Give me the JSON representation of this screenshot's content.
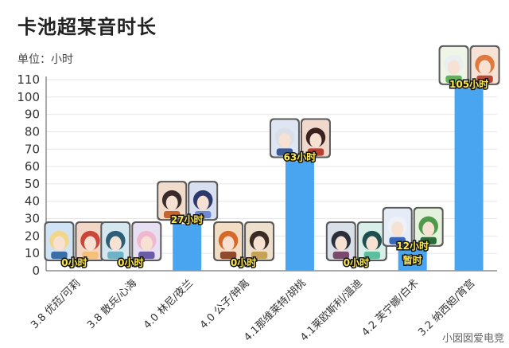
{
  "title": "卡池超某音时长",
  "unit_label": "单位：小时",
  "watermark": "小囡囡爱电竞",
  "colors": {
    "bar": "#4aa5f0",
    "grid": "#e6e6e6",
    "axis": "#555555"
  },
  "chart_data": {
    "type": "bar",
    "title": "卡池超某音时长",
    "xlabel": "",
    "ylabel": "",
    "ylim": [
      0,
      110
    ],
    "yticks": [
      0,
      10,
      20,
      30,
      40,
      50,
      60,
      70,
      80,
      90,
      100,
      110
    ],
    "grid": true,
    "categories": [
      "3.8 优菈/可莉",
      "3.8 散兵/心海",
      "4.0 林尼/夜兰",
      "4.0 公子/钟离",
      "4.1那维莱特/胡桃",
      "4.1莱欧斯利/温迪",
      "4.2 芙宁娜/白术",
      "3.2 纳西妲/宵宫"
    ],
    "values": [
      0,
      0,
      27,
      0,
      63,
      0,
      12,
      105
    ],
    "data_labels": [
      "0小时",
      "0小时",
      "27小时",
      "0小时",
      "63小时",
      "0小时",
      "12小时",
      "105小时"
    ],
    "extra_labels": [
      {
        "category_index": 6,
        "text": "暂时"
      }
    ],
    "character_cards": [
      [
        "card-blonde",
        "card-red-hood"
      ],
      [
        "card-blue-hat",
        "card-pink-hair"
      ],
      [
        "card-top-hat",
        "card-dark-blue"
      ],
      [
        "card-orange-hair",
        "card-dark-brown"
      ],
      [
        "card-white-hair",
        "card-black-hat"
      ],
      [
        "card-dark-armor",
        "card-teal-braids"
      ],
      [
        "card-white-blue",
        "card-green-hat"
      ],
      [
        "card-white-green",
        "card-orange-fox"
      ]
    ]
  }
}
